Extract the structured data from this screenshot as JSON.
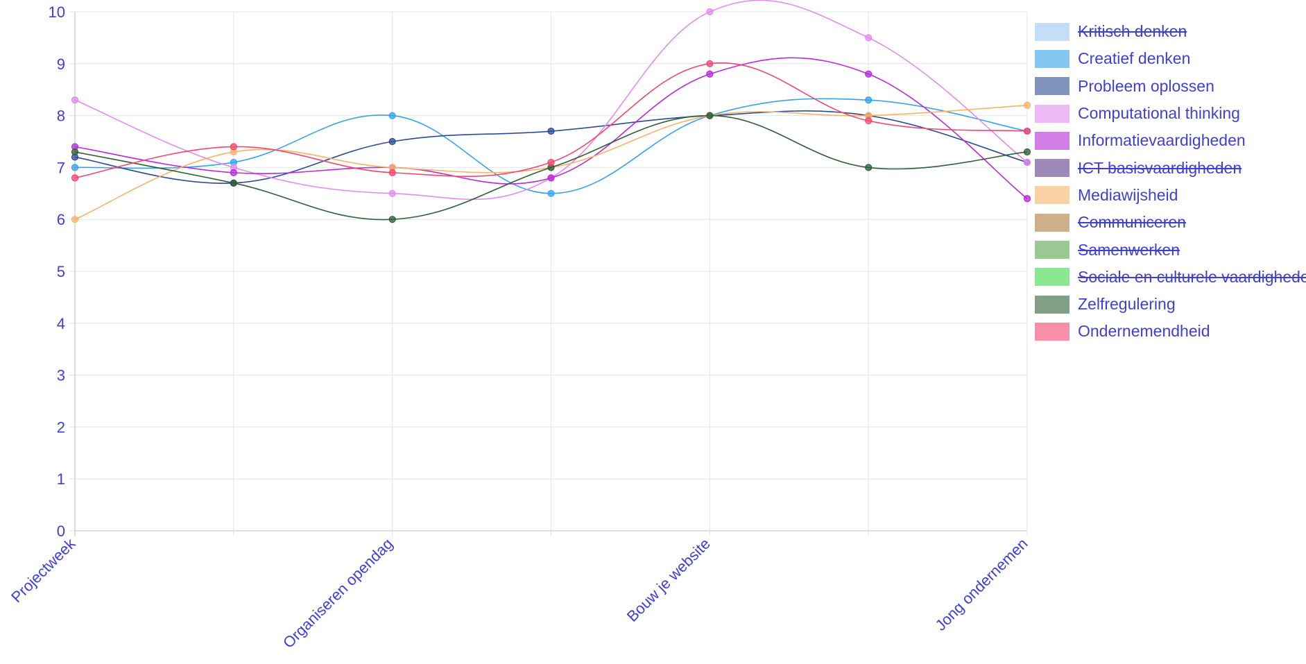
{
  "chart_data": {
    "type": "line",
    "title": "",
    "xlabel": "",
    "ylabel": "",
    "ylim": [
      0,
      10
    ],
    "yticks": [
      "0",
      "1",
      "2",
      "3",
      "4",
      "5",
      "6",
      "7",
      "8",
      "9",
      "10"
    ],
    "x_tick_labels": [
      "Projectweek",
      "",
      "Organiseren opendag",
      "",
      "Bouw je website",
      "",
      "Jong ondernemen"
    ],
    "grid": true,
    "legend_position": "right",
    "series": [
      {
        "name": "Kritisch denken",
        "color": "#9ec9f5",
        "hidden": true,
        "values": []
      },
      {
        "name": "Creatief denken",
        "color": "#36a2eb",
        "hidden": false,
        "values": [
          7.0,
          7.1,
          8.0,
          6.5,
          8.0,
          8.3,
          7.7
        ]
      },
      {
        "name": "Probleem oplossen",
        "color": "#2c4a94",
        "hidden": false,
        "values": [
          7.2,
          6.7,
          7.5,
          7.7,
          8.0,
          8.0,
          7.1
        ]
      },
      {
        "name": "Computational thinking",
        "color": "#e38af0",
        "hidden": false,
        "values": [
          8.3,
          7.0,
          6.5,
          6.8,
          10.0,
          9.5,
          7.1
        ]
      },
      {
        "name": "Informatievaardigheden",
        "color": "#b72ad6",
        "hidden": false,
        "values": [
          7.4,
          6.9,
          7.0,
          6.8,
          8.8,
          8.8,
          6.4
        ]
      },
      {
        "name": "ICT basisvaardigheden",
        "color": "#5e3e8a",
        "hidden": true,
        "values": []
      },
      {
        "name": "Mediawijsheid",
        "color": "#f8b26a",
        "hidden": false,
        "values": [
          6.0,
          7.3,
          7.0,
          7.0,
          8.0,
          8.0,
          8.2
        ]
      },
      {
        "name": "Communiceren",
        "color": "#b07a3e",
        "hidden": true,
        "values": []
      },
      {
        "name": "Samenwerken",
        "color": "#5aa64c",
        "hidden": true,
        "values": []
      },
      {
        "name": "Sociale en culturele vaardigheden",
        "color": "#3fd94a",
        "hidden": true,
        "values": []
      },
      {
        "name": "Zelfregulering",
        "color": "#2f5e36",
        "hidden": false,
        "values": [
          7.3,
          6.7,
          6.0,
          7.0,
          8.0,
          7.0,
          7.3
        ]
      },
      {
        "name": "Ondernemendheid",
        "color": "#f5456f",
        "hidden": false,
        "values": [
          6.8,
          7.4,
          6.9,
          7.1,
          9.0,
          7.9,
          7.7
        ]
      }
    ]
  }
}
